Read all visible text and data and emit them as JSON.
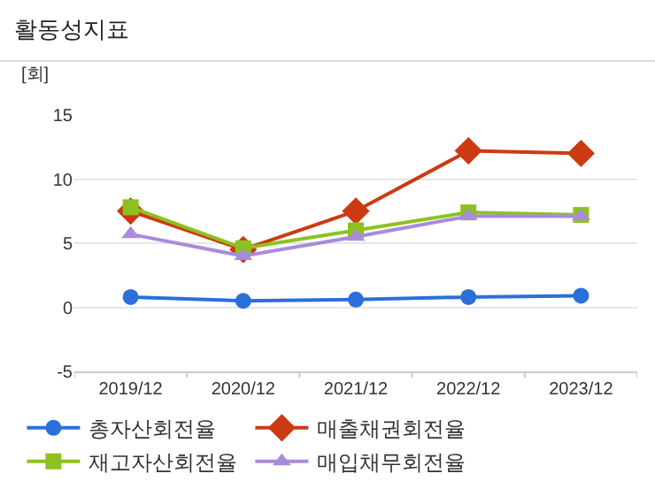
{
  "chart_data": {
    "type": "line",
    "title": "활동성지표",
    "ylabel": "[회]",
    "categories": [
      "2019/12",
      "2020/12",
      "2021/12",
      "2022/12",
      "2023/12"
    ],
    "series": [
      {
        "name": "총자산회전율",
        "color": "#2a6fdb",
        "marker": "circle",
        "values": [
          0.8,
          0.5,
          0.6,
          0.8,
          0.9
        ]
      },
      {
        "name": "매출채권회전율",
        "color": "#cc3a12",
        "marker": "diamond",
        "values": [
          7.5,
          4.5,
          7.5,
          12.2,
          12.0
        ]
      },
      {
        "name": "재고자산회전율",
        "color": "#8cc21f",
        "marker": "square",
        "values": [
          7.8,
          4.6,
          6.0,
          7.4,
          7.2
        ]
      },
      {
        "name": "매입채무회전율",
        "color": "#a98bdb",
        "marker": "triangle",
        "values": [
          5.7,
          4.0,
          5.5,
          7.1,
          7.1
        ]
      }
    ],
    "ylim": [
      -5,
      15
    ],
    "yticks": [
      -5,
      0,
      5,
      10,
      15
    ],
    "grid": "y",
    "legend": "bottom",
    "line_style": "solid"
  }
}
